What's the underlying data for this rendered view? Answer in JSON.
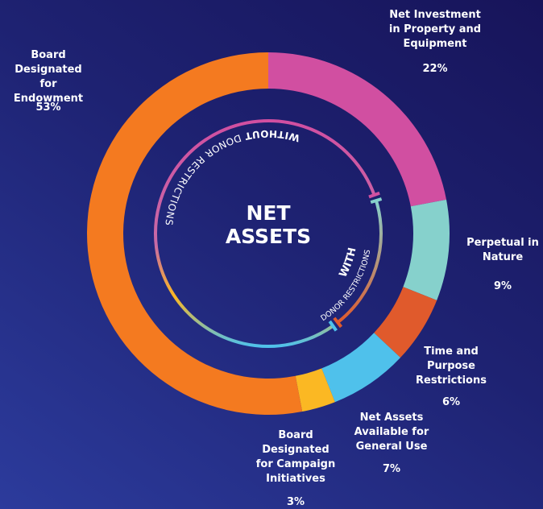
{
  "chart_data": {
    "type": "donut",
    "title": "NET ASSETS",
    "categories": [
      "Net Investment in Property and Equipment",
      "Perpetual in Nature",
      "Time and Purpose Restrictions",
      "Net Assets Available for General Use",
      "Board Designated for Campaign Initiatives",
      "Board Designated for Endowment"
    ],
    "values": [
      22,
      9,
      6,
      7,
      3,
      53
    ],
    "value_labels": [
      "22%",
      "9%",
      "6%",
      "7%",
      "3%",
      "53%"
    ],
    "colors": [
      "#d14fa1",
      "#86d1cc",
      "#e05a2c",
      "#4fc1eb",
      "#fbb823",
      "#f47a20"
    ],
    "annotations": [
      "WITHOUT",
      "DONOR RESTRICTIONS",
      "WITH",
      "DONOR RESTRICTIONS"
    ]
  }
}
